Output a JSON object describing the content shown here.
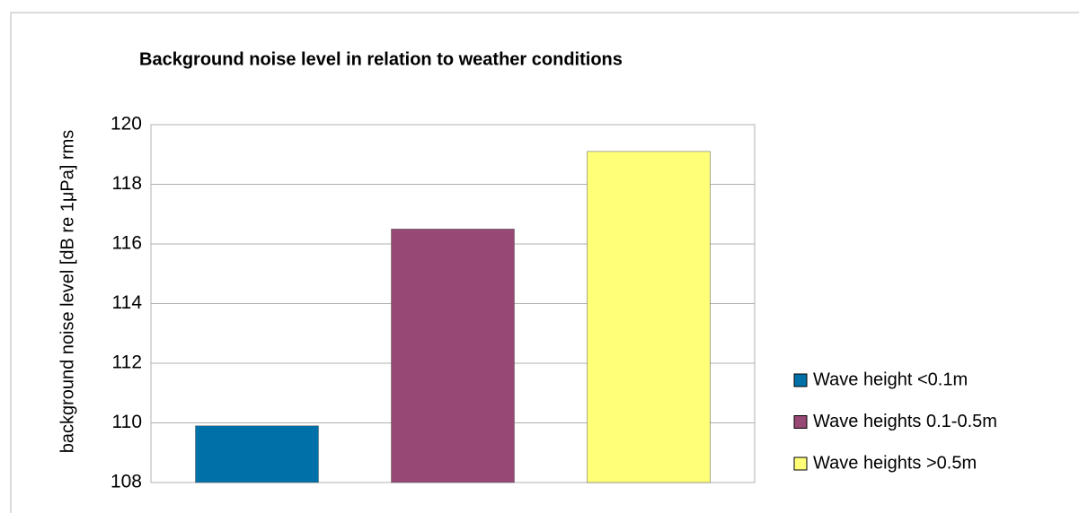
{
  "chart_data": {
    "type": "bar",
    "title": "Background noise level in relation to weather conditions",
    "y_label": "background noise level [dB re 1μPa] rms",
    "categories": [
      null
    ],
    "series": [
      {
        "name": "Wave height <0.1m",
        "color": "#0070a8",
        "values": [
          109.9
        ]
      },
      {
        "name": "Wave heights 0.1-0.5m",
        "color": "#984874",
        "values": [
          116.5
        ]
      },
      {
        "name": "Wave heights >0.5m",
        "color": "#ffff78",
        "values": [
          119.1
        ]
      }
    ],
    "ylim": [
      108,
      120
    ],
    "yticks": [
      108,
      110,
      112,
      114,
      116,
      118,
      120
    ],
    "grid": true,
    "legend": "right"
  }
}
